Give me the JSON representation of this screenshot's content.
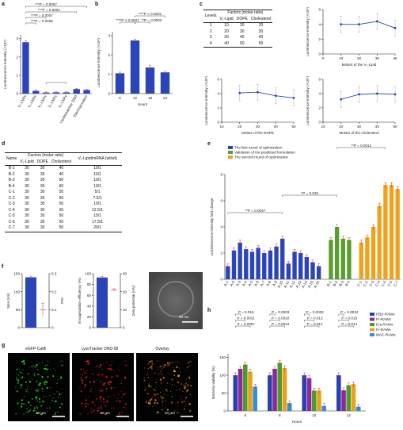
{
  "panels": {
    "a": {
      "label": "a",
      "ylabel": "Luminescence intensity (×10⁸)",
      "yticks": [
        "0",
        "1",
        "2",
        "3"
      ],
      "categories": [
        "V₁-LNPs",
        "V₂-LNPs",
        "V₃-LNPs",
        "V₄-LNPs",
        "V₅-LNPs",
        "Lipofectamine 3000",
        "Electroporation"
      ],
      "values": [
        2.8,
        0.15,
        0.06,
        0.07,
        0.07,
        0.25,
        0.2
      ],
      "pvalues": [
        "***P = 0.0007",
        "***P = 0.0004",
        "***P = 0.0007",
        "***P = 0.0006"
      ]
    },
    "b": {
      "label": "b",
      "ylabel": "Luminescence intensity (×10⁸)",
      "xlabel": "Hours",
      "yticks": [
        "0",
        "1",
        "2",
        "3"
      ],
      "categories": [
        "6",
        "12",
        "18",
        "24"
      ],
      "values": [
        1.05,
        2.75,
        1.35,
        1.1
      ],
      "pvalues": [
        "****P < 0.0001",
        "****P < 0.0001",
        "**P = 0.0002"
      ]
    },
    "c": {
      "label": "c",
      "table": {
        "h1": "Levels",
        "h2": "Factors (molar ratio)",
        "cols": [
          "V₁-Lipid",
          "DOPE",
          "Cholesterol"
        ],
        "rows": [
          [
            "1",
            "10",
            "20",
            "20"
          ],
          [
            "2",
            "20",
            "30",
            "30"
          ],
          [
            "3",
            "30",
            "40",
            "40"
          ],
          [
            "4",
            "40",
            "50",
            "50"
          ]
        ]
      },
      "plots": [
        {
          "xlabel": "Molars of the V₁-Lipid",
          "ylabel": "Luminescence intensity (×10⁸)",
          "x": [
            10,
            20,
            30,
            40
          ],
          "y": [
            4.0,
            4.0,
            4.4,
            3.5
          ],
          "xticks": [
            "0",
            "10",
            "20",
            "30",
            "40"
          ],
          "yticks": [
            "0",
            "2",
            "4",
            "6"
          ]
        },
        {
          "xlabel": "Molars of the DOPE",
          "ylabel": "Luminescence intensity (×10⁸)",
          "x": [
            20,
            30,
            40,
            50
          ],
          "y": [
            4.1,
            4.2,
            3.7,
            3.4
          ],
          "xticks": [
            "10",
            "20",
            "30",
            "40",
            "50"
          ],
          "yticks": [
            "0",
            "2",
            "4",
            "6"
          ]
        },
        {
          "xlabel": "Molars of the cholesterol",
          "ylabel": "Luminescence intensity (×10⁸)",
          "x": [
            20,
            30,
            40,
            50
          ],
          "y": [
            3.2,
            3.9,
            4.0,
            3.9
          ],
          "xticks": [
            "10",
            "20",
            "30",
            "40",
            "50"
          ],
          "yticks": [
            "0",
            "2",
            "4",
            "6"
          ]
        }
      ]
    },
    "d": {
      "label": "d",
      "table": {
        "h1": "Name",
        "h2": "Factors (molar ratio)",
        "h3": "V₁-Lipid/mRNA (wt/wt)",
        "cols": [
          "V₁-Lipid",
          "DOPE",
          "Cholesterol"
        ],
        "rows": [
          [
            "B-1",
            "30",
            "30",
            "40",
            "10/1"
          ],
          [
            "B-2",
            "30",
            "30",
            "40",
            "10/1"
          ],
          [
            "B-3",
            "30",
            "30",
            "50",
            "10/1"
          ],
          [
            "B-4",
            "30",
            "30",
            "60",
            "10/1"
          ],
          [
            "C-1",
            "30",
            "30",
            "50",
            "5/1"
          ],
          [
            "C-2",
            "30",
            "30",
            "50",
            "7.5/1"
          ],
          [
            "C-3",
            "30",
            "30",
            "50",
            "10/1"
          ],
          [
            "C-4",
            "30",
            "30",
            "50",
            "12.5/1"
          ],
          [
            "C-5",
            "30",
            "30",
            "50",
            "15/1"
          ],
          [
            "C-6",
            "30",
            "30",
            "50",
            "17.5/1"
          ],
          [
            "C-7",
            "30",
            "30",
            "50",
            "20/1"
          ]
        ]
      }
    },
    "e": {
      "label": "e",
      "ylabel": "Luminescence intensity fold change",
      "yticks": [
        "0",
        "2",
        "4",
        "6",
        "8"
      ],
      "legend": [
        "The first round of optimization",
        "Validation of the predicted formulation",
        "The second round of optimization"
      ],
      "colors": [
        "#2b44b8",
        "#5a9e2f",
        "#f0a21c"
      ],
      "groupA": {
        "categories": [
          "A-1",
          "A-2",
          "A-3",
          "A-4",
          "A-5",
          "A-6",
          "A-7",
          "A-8",
          "A-9",
          "A-10",
          "A-11",
          "A-12",
          "A-13",
          "A-14",
          "A-15",
          "A-16"
        ],
        "values": [
          1.0,
          2.2,
          2.8,
          2.3,
          2.1,
          2.4,
          2.0,
          2.2,
          2.5,
          3.1,
          1.2,
          2.1,
          2.0,
          1.7,
          1.3,
          1.0
        ]
      },
      "groupB": {
        "categories": [
          "B-1",
          "B-2",
          "B-3",
          "B-4"
        ],
        "values": [
          3.0,
          4.0,
          3.1,
          3.0
        ]
      },
      "groupC": {
        "categories": [
          "C-1",
          "C-2",
          "C-3",
          "C-4",
          "C-5",
          "C-6",
          "C-7"
        ],
        "values": [
          2.8,
          3.2,
          4.0,
          5.6,
          7.2,
          7.2,
          6.9
        ]
      },
      "pvalues": [
        "**P = 0.0047",
        "*P = 0.046",
        "**P = 0.0012"
      ]
    },
    "f": {
      "label": "f",
      "size": {
        "ylabel": "Size (nm)",
        "value": 140,
        "yticks": [
          "0",
          "50",
          "100",
          "150"
        ]
      },
      "pdi": {
        "ylabel": "PDI",
        "value": 0.1,
        "yticks": [
          "0",
          "0.1",
          "0.2",
          "0.3"
        ]
      },
      "ee": {
        "ylabel": "Encapsulation efficiency (%)",
        "value": 93,
        "yticks": [
          "0",
          "20",
          "40",
          "60",
          "80",
          "100"
        ]
      },
      "zeta": {
        "ylabel": "Zeta potential (mV)",
        "value": 21,
        "yticks": [
          "0",
          "10",
          "20",
          "30"
        ]
      },
      "scalebar": "50 nm"
    },
    "g": {
      "label": "g",
      "captions": [
        "eGFP-CatB",
        "LysoTracker DND-99",
        "Overlay"
      ],
      "scalebars": [
        "10 μm",
        "10 μm",
        "10 μm"
      ]
    },
    "h": {
      "label": "h",
      "ylabel": "Bacteria viability (%)",
      "xlabel": "Hours",
      "yticks": [
        "0",
        "50",
        "100",
        "150"
      ],
      "categories": [
        "6",
        "8",
        "10",
        "12"
      ],
      "legend": [
        "PBS-RAWs",
        "Fr-RAWs",
        "Ers-RAWs",
        "Fr-RAWs",
        "MAC-RAWs"
      ],
      "colors": [
        "#2b3fb0",
        "#8b2a9a",
        "#4f9a2e",
        "#e8a21a",
        "#2f8fd6"
      ],
      "series": [
        [
          100,
          100,
          100,
          100
        ],
        [
          118,
          118,
          92,
          58
        ],
        [
          130,
          135,
          57,
          72
        ],
        [
          110,
          120,
          57,
          75
        ],
        [
          68,
          22,
          14,
          12
        ]
      ],
      "pvalues": [
        "P = 0.016",
        "P = 0.0031",
        "P = 0.0057",
        "P = 0.0003",
        "P = 0.0020",
        "P = 0.0024",
        "P = 0.0002",
        "P = 0.013",
        "P = 0.012",
        "P = 0.0034",
        "P = 0.016",
        "P = 0.014"
      ]
    }
  }
}
